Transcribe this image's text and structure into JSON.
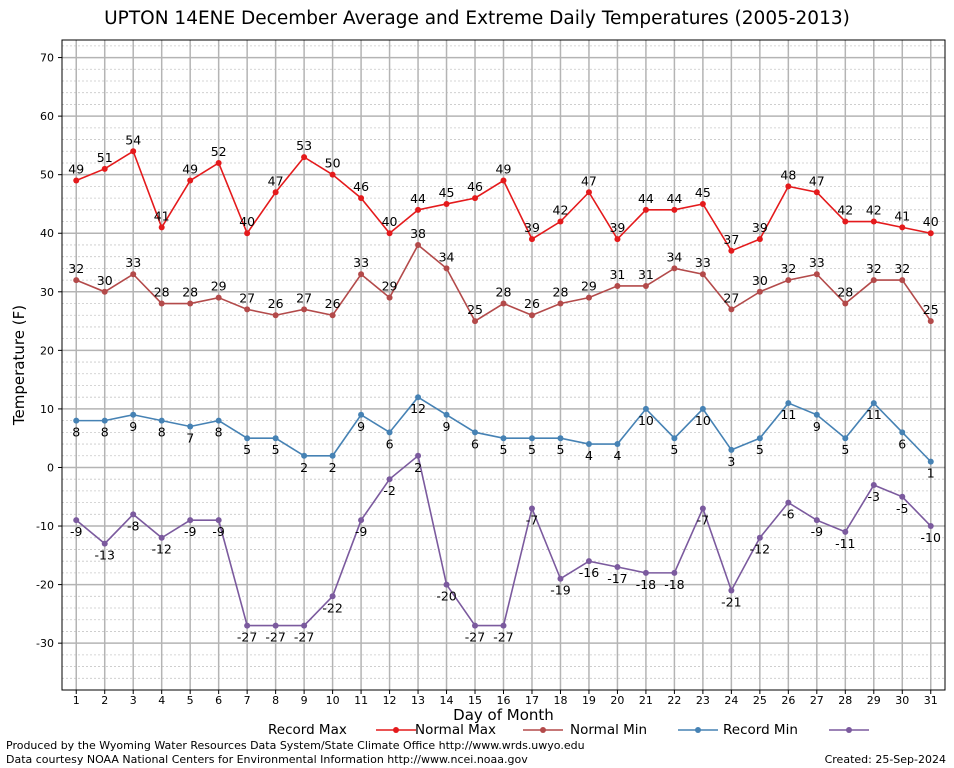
{
  "chart_data": {
    "type": "line",
    "title": "UPTON 14ENE December Average and Extreme Daily Temperatures (2005-2013)",
    "xlabel": "Day of Month",
    "ylabel": "Temperature (F)",
    "ylim": [
      -38,
      73
    ],
    "yticks": [
      -30,
      -20,
      -10,
      0,
      10,
      20,
      30,
      40,
      50,
      60,
      70
    ],
    "x": [
      1,
      2,
      3,
      4,
      5,
      6,
      7,
      8,
      9,
      10,
      11,
      12,
      13,
      14,
      15,
      16,
      17,
      18,
      19,
      20,
      21,
      22,
      23,
      24,
      25,
      26,
      27,
      28,
      29,
      30,
      31
    ],
    "grid": true,
    "legend": "bottom",
    "series": [
      {
        "name": "Record Max",
        "color": "#e41a1c",
        "values": [
          49,
          51,
          54,
          41,
          49,
          52,
          40,
          47,
          53,
          50,
          46,
          40,
          44,
          45,
          46,
          49,
          39,
          42,
          47,
          39,
          44,
          44,
          45,
          37,
          39,
          48,
          47,
          42,
          42,
          41,
          40
        ]
      },
      {
        "name": "Normal Max",
        "color": "#b34a4a",
        "values": [
          32,
          30,
          33,
          28,
          28,
          29,
          27,
          26,
          27,
          26,
          33,
          29,
          38,
          34,
          25,
          28,
          26,
          28,
          29,
          31,
          31,
          34,
          33,
          27,
          30,
          32,
          33,
          28,
          32,
          32,
          25
        ]
      },
      {
        "name": "Normal Min",
        "color": "#4682b4",
        "values": [
          8,
          8,
          9,
          8,
          7,
          8,
          5,
          5,
          2,
          2,
          9,
          6,
          12,
          9,
          6,
          5,
          5,
          5,
          4,
          4,
          10,
          5,
          10,
          3,
          5,
          11,
          9,
          5,
          11,
          6,
          1
        ]
      },
      {
        "name": "Record Min",
        "color": "#7b5a9e",
        "values": [
          -9,
          -13,
          -8,
          -12,
          -9,
          -9,
          -27,
          -27,
          -27,
          -22,
          -9,
          -2,
          2,
          -20,
          -27,
          -27,
          -7,
          -19,
          -16,
          -17,
          -18,
          -18,
          -7,
          -21,
          -12,
          -6,
          -9,
          -11,
          -3,
          -5,
          -10
        ]
      }
    ]
  },
  "footer": {
    "produced_by": "Produced by the Wyoming Water Resources Data System/State Climate Office http://www.wrds.uwyo.edu",
    "courtesy": "Data courtesy NOAA National Centers for Environmental Information http://www.ncei.noaa.gov",
    "created": "Created:  25-Sep-2024"
  }
}
